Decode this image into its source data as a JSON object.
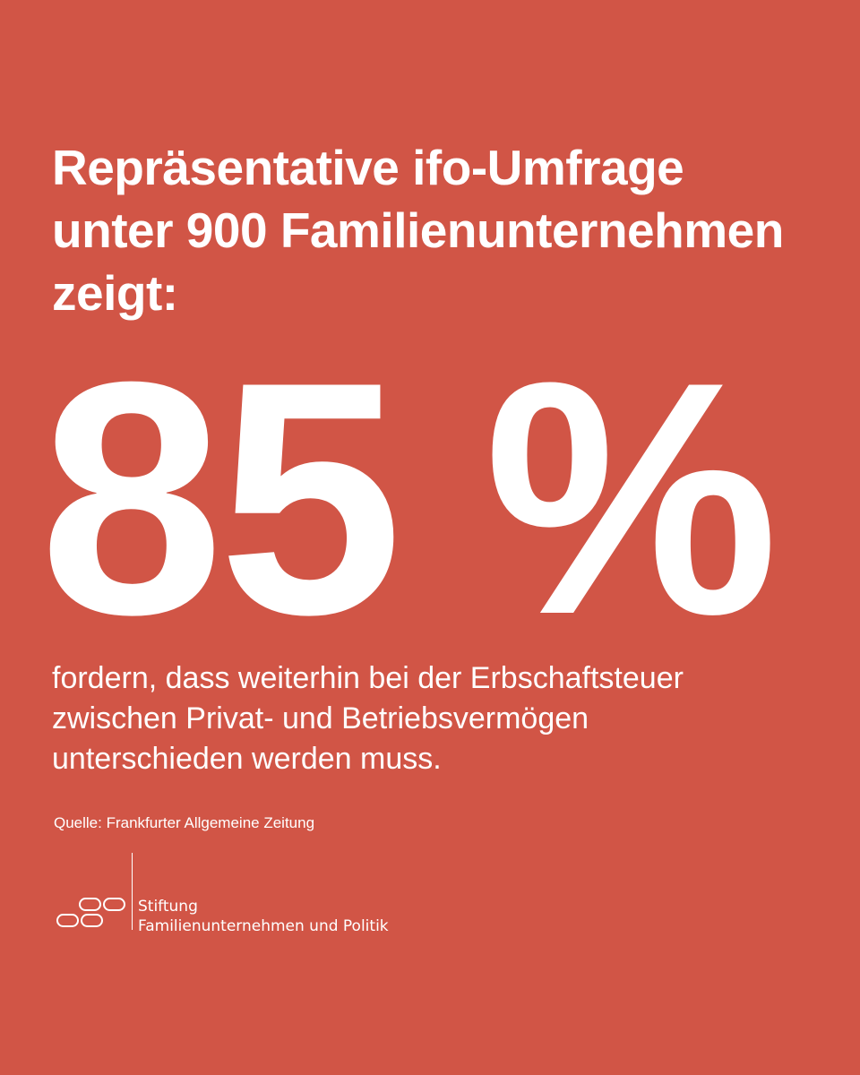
{
  "headline": {
    "line1": "Repräsentative ifo-Umfrage",
    "line2": "unter 900 Familienunternehmen",
    "line3": "zeigt:"
  },
  "stat": {
    "value": "85 %",
    "percent": 85
  },
  "body": {
    "line1": "fordern, dass weiterhin bei der Erbschaftsteuer",
    "line2": "zwischen Privat- und Betriebsvermögen",
    "line3": "unterschieden werden muss."
  },
  "source": "Quelle: Frankfurter Allgemeine Zeitung",
  "logo": {
    "line1": "Stiftung",
    "line2": "Familienunternehmen und Politik",
    "icon": "linked-rounded-rectangles-icon"
  },
  "colors": {
    "background": "#d15546",
    "text": "#ffffff"
  }
}
